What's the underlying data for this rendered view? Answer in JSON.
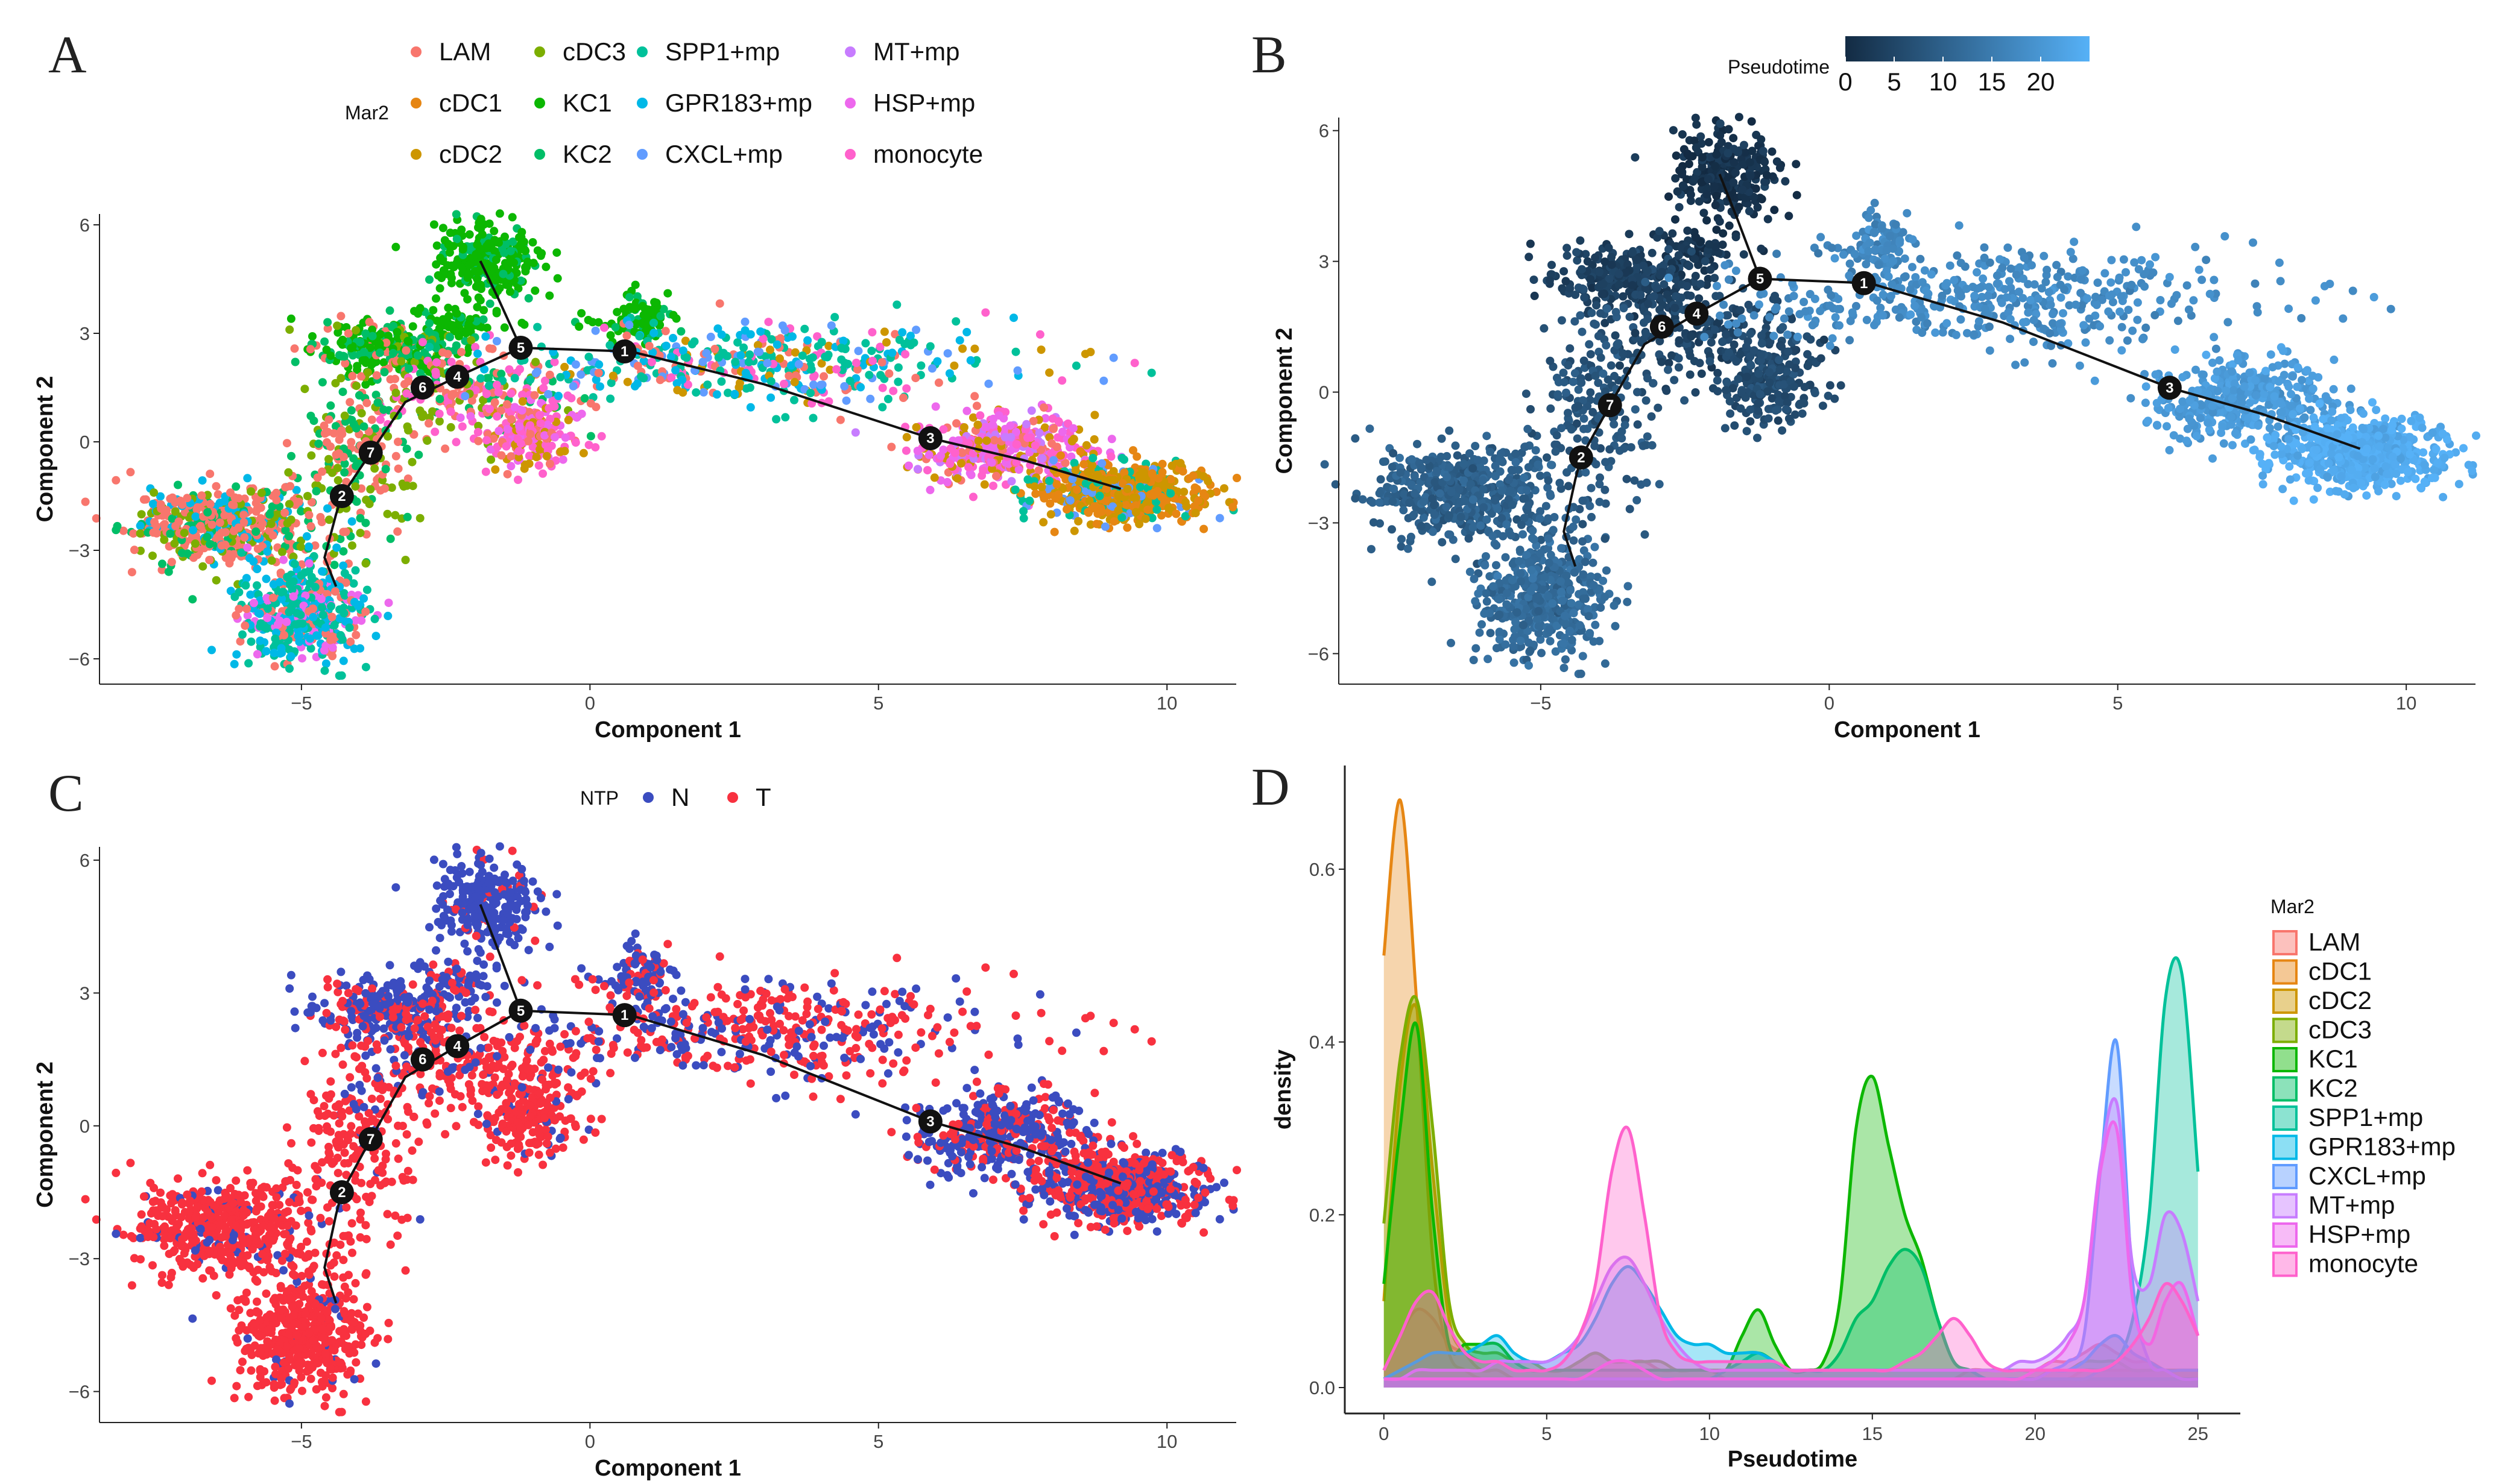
{
  "chart_data": [
    {
      "panel": "A",
      "type": "scatter",
      "xlabel": "Component 1",
      "ylabel": "Component 2",
      "xlim": [
        -8.5,
        11.2
      ],
      "ylim": [
        -6.7,
        6.3
      ],
      "xticks": [
        -5,
        0,
        5,
        10
      ],
      "yticks": [
        -6,
        -3,
        0,
        3,
        6
      ],
      "xtick_labels": [
        "−5",
        "0",
        "5",
        "10"
      ],
      "ytick_labels": [
        "−6",
        "−3",
        "0",
        "3",
        "6"
      ],
      "legend_title": "Mar2",
      "legend_position": "top",
      "color_by": "Mar2",
      "categories": [
        "LAM",
        "cDC1",
        "cDC2",
        "cDC3",
        "KC1",
        "KC2",
        "SPP1+mp",
        "GPR183+mp",
        "CXCL+mp",
        "MT+mp",
        "HSP+mp",
        "monocyte"
      ],
      "colors": [
        "#F8766D",
        "#E68613",
        "#CD9600",
        "#7CAE00",
        "#0CB702",
        "#00BE67",
        "#00C19A",
        "#00B8E7",
        "#619CFF",
        "#C77CFF",
        "#ED68ED",
        "#FF61CC"
      ]
    },
    {
      "panel": "B",
      "type": "scatter",
      "xlabel": "Component 1",
      "ylabel": "Component 2",
      "xlim": [
        -8.5,
        11.2
      ],
      "ylim": [
        -6.7,
        6.3
      ],
      "xticks": [
        -5,
        0,
        5,
        10
      ],
      "yticks": [
        -6,
        -3,
        0,
        3,
        6
      ],
      "xtick_labels": [
        "−5",
        "0",
        "5",
        "10"
      ],
      "ytick_labels": [
        "−6",
        "−3",
        "0",
        "3",
        "6"
      ],
      "legend_title": "Pseudotime",
      "legend_position": "top",
      "color_by": "Pseudotime",
      "colorbar_range": [
        0,
        25
      ],
      "colorbar_ticks": [
        "0",
        "5",
        "10",
        "15",
        "20"
      ],
      "colorbar_tick_values": [
        0,
        5,
        10,
        15,
        20
      ],
      "colorbar_low": "#132B43",
      "colorbar_high": "#56B1F7"
    },
    {
      "panel": "C",
      "type": "scatter",
      "xlabel": "Component 1",
      "ylabel": "Component 2",
      "xlim": [
        -8.5,
        11.2
      ],
      "ylim": [
        -6.7,
        6.3
      ],
      "xticks": [
        -5,
        0,
        5,
        10
      ],
      "yticks": [
        -6,
        -3,
        0,
        3,
        6
      ],
      "xtick_labels": [
        "−5",
        "0",
        "5",
        "10"
      ],
      "ytick_labels": [
        "−6",
        "−3",
        "0",
        "3",
        "6"
      ],
      "legend_title": "NTP",
      "legend_position": "top",
      "color_by": "NTP",
      "categories": [
        "N",
        "T"
      ],
      "colors": [
        "#3B4CC0",
        "#F8313F"
      ]
    },
    {
      "panel": "D",
      "type": "area",
      "xlabel": "Pseudotime",
      "ylabel": "density",
      "xlim": [
        -1.2,
        26.3
      ],
      "ylim": [
        -0.03,
        0.72
      ],
      "xticks": [
        0,
        5,
        10,
        15,
        20,
        25
      ],
      "yticks": [
        0.0,
        0.2,
        0.4,
        0.6
      ],
      "xtick_labels": [
        "0",
        "5",
        "10",
        "15",
        "20",
        "25"
      ],
      "ytick_labels": [
        "0.0",
        "0.2",
        "0.4",
        "0.6"
      ],
      "legend_title": "Mar2",
      "legend_position": "right",
      "x": [
        0,
        0.5,
        1,
        1.5,
        2,
        2.5,
        3,
        3.5,
        4,
        4.5,
        5,
        5.5,
        6,
        6.5,
        7,
        7.5,
        8,
        8.5,
        9,
        9.5,
        10,
        10.5,
        11,
        11.5,
        12,
        12.5,
        13,
        13.5,
        14,
        14.5,
        15,
        15.5,
        16,
        16.5,
        17,
        17.5,
        18,
        18.5,
        19,
        19.5,
        20,
        20.5,
        21,
        21.5,
        22,
        22.5,
        23,
        23.5,
        24,
        24.5,
        25
      ],
      "series": [
        {
          "name": "LAM",
          "color": "#F8766D",
          "values": [
            0.02,
            0.06,
            0.09,
            0.08,
            0.05,
            0.04,
            0.03,
            0.03,
            0.03,
            0.03,
            0.02,
            0.02,
            0.03,
            0.04,
            0.03,
            0.03,
            0.03,
            0.02,
            0.02,
            0.02,
            0.02,
            0.01,
            0.01,
            0.01,
            0.01,
            0.01,
            0.01,
            0.01,
            0.01,
            0.01,
            0.01,
            0.01,
            0.01,
            0.01,
            0.01,
            0.01,
            0.02,
            0.02,
            0.02,
            0.02,
            0.02,
            0.03,
            0.03,
            0.04,
            0.05,
            0.04,
            0.03,
            0.03,
            0.02,
            0.02,
            0.02
          ]
        },
        {
          "name": "cDC1",
          "color": "#E68613",
          "values": [
            0.5,
            0.68,
            0.45,
            0.15,
            0.04,
            0.02,
            0.01,
            0.01,
            0.01,
            0.01,
            0.01,
            0.01,
            0.01,
            0.01,
            0.01,
            0.01,
            0.01,
            0.01,
            0.01,
            0.01,
            0.01,
            0.01,
            0.01,
            0.01,
            0.01,
            0.01,
            0.01,
            0.01,
            0.01,
            0.01,
            0.01,
            0.01,
            0.01,
            0.01,
            0.01,
            0.01,
            0.01,
            0.01,
            0.01,
            0.01,
            0.01,
            0.01,
            0.01,
            0.02,
            0.02,
            0.02,
            0.02,
            0.02,
            0.02,
            0.02,
            0.02
          ]
        },
        {
          "name": "cDC2",
          "color": "#CD9600",
          "values": [
            0.1,
            0.35,
            0.44,
            0.25,
            0.08,
            0.04,
            0.02,
            0.02,
            0.01,
            0.01,
            0.01,
            0.01,
            0.01,
            0.01,
            0.01,
            0.01,
            0.01,
            0.01,
            0.01,
            0.01,
            0.01,
            0.01,
            0.01,
            0.01,
            0.01,
            0.01,
            0.01,
            0.01,
            0.01,
            0.01,
            0.01,
            0.01,
            0.01,
            0.01,
            0.01,
            0.01,
            0.01,
            0.01,
            0.01,
            0.01,
            0.01,
            0.02,
            0.02,
            0.03,
            0.05,
            0.06,
            0.04,
            0.03,
            0.02,
            0.02,
            0.02
          ]
        },
        {
          "name": "cDC3",
          "color": "#7CAE00",
          "values": [
            0.19,
            0.38,
            0.45,
            0.3,
            0.1,
            0.05,
            0.04,
            0.04,
            0.03,
            0.03,
            0.02,
            0.02,
            0.03,
            0.04,
            0.03,
            0.03,
            0.03,
            0.03,
            0.02,
            0.02,
            0.02,
            0.02,
            0.02,
            0.02,
            0.02,
            0.02,
            0.02,
            0.02,
            0.02,
            0.02,
            0.02,
            0.02,
            0.02,
            0.02,
            0.02,
            0.02,
            0.02,
            0.02,
            0.02,
            0.02,
            0.02,
            0.02,
            0.02,
            0.03,
            0.03,
            0.03,
            0.02,
            0.02,
            0.02,
            0.02,
            0.02
          ]
        },
        {
          "name": "KC1",
          "color": "#0CB702",
          "values": [
            0.12,
            0.3,
            0.42,
            0.2,
            0.05,
            0.05,
            0.05,
            0.05,
            0.03,
            0.02,
            0.02,
            0.02,
            0.02,
            0.02,
            0.02,
            0.02,
            0.02,
            0.02,
            0.02,
            0.02,
            0.02,
            0.02,
            0.06,
            0.09,
            0.05,
            0.02,
            0.02,
            0.03,
            0.1,
            0.3,
            0.36,
            0.28,
            0.2,
            0.15,
            0.08,
            0.03,
            0.02,
            0.01,
            0.01,
            0.01,
            0.01,
            0.01,
            0.01,
            0.01,
            0.01,
            0.01,
            0.01,
            0.01,
            0.01,
            0.01,
            0.01
          ]
        },
        {
          "name": "KC2",
          "color": "#00BE67",
          "values": [
            0.01,
            0.01,
            0.01,
            0.01,
            0.01,
            0.01,
            0.01,
            0.01,
            0.01,
            0.01,
            0.01,
            0.01,
            0.01,
            0.01,
            0.01,
            0.01,
            0.01,
            0.01,
            0.01,
            0.01,
            0.01,
            0.02,
            0.03,
            0.04,
            0.03,
            0.02,
            0.02,
            0.02,
            0.04,
            0.08,
            0.1,
            0.14,
            0.16,
            0.14,
            0.08,
            0.03,
            0.02,
            0.01,
            0.01,
            0.01,
            0.01,
            0.01,
            0.01,
            0.01,
            0.01,
            0.01,
            0.01,
            0.01,
            0.01,
            0.01,
            0.01
          ]
        },
        {
          "name": "SPP1+mp",
          "color": "#00C19A",
          "values": [
            0.01,
            0.01,
            0.01,
            0.01,
            0.01,
            0.01,
            0.01,
            0.01,
            0.01,
            0.01,
            0.01,
            0.01,
            0.01,
            0.01,
            0.01,
            0.01,
            0.01,
            0.01,
            0.01,
            0.01,
            0.01,
            0.01,
            0.01,
            0.01,
            0.01,
            0.01,
            0.01,
            0.01,
            0.01,
            0.01,
            0.01,
            0.01,
            0.01,
            0.01,
            0.01,
            0.01,
            0.01,
            0.01,
            0.01,
            0.01,
            0.01,
            0.01,
            0.01,
            0.01,
            0.02,
            0.03,
            0.08,
            0.2,
            0.45,
            0.48,
            0.25
          ]
        },
        {
          "name": "GPR183+mp",
          "color": "#00B8E7",
          "values": [
            0.01,
            0.02,
            0.03,
            0.04,
            0.04,
            0.04,
            0.05,
            0.06,
            0.04,
            0.03,
            0.03,
            0.04,
            0.05,
            0.08,
            0.12,
            0.14,
            0.12,
            0.09,
            0.06,
            0.05,
            0.05,
            0.04,
            0.04,
            0.04,
            0.03,
            0.02,
            0.02,
            0.02,
            0.02,
            0.02,
            0.02,
            0.02,
            0.02,
            0.02,
            0.02,
            0.02,
            0.02,
            0.02,
            0.02,
            0.02,
            0.02,
            0.02,
            0.02,
            0.03,
            0.05,
            0.06,
            0.04,
            0.03,
            0.02,
            0.02,
            0.02
          ]
        },
        {
          "name": "CXCL+mp",
          "color": "#619CFF",
          "values": [
            0.01,
            0.01,
            0.01,
            0.01,
            0.01,
            0.01,
            0.01,
            0.01,
            0.01,
            0.01,
            0.01,
            0.01,
            0.01,
            0.01,
            0.01,
            0.01,
            0.01,
            0.01,
            0.01,
            0.01,
            0.01,
            0.01,
            0.01,
            0.01,
            0.01,
            0.01,
            0.01,
            0.01,
            0.01,
            0.01,
            0.01,
            0.01,
            0.01,
            0.01,
            0.01,
            0.01,
            0.01,
            0.01,
            0.01,
            0.01,
            0.01,
            0.02,
            0.03,
            0.06,
            0.25,
            0.4,
            0.12,
            0.03,
            0.02,
            0.01,
            0.01
          ]
        },
        {
          "name": "MT+mp",
          "color": "#C77CFF",
          "values": [
            0.01,
            0.01,
            0.02,
            0.02,
            0.02,
            0.02,
            0.02,
            0.03,
            0.03,
            0.03,
            0.03,
            0.04,
            0.06,
            0.1,
            0.14,
            0.15,
            0.12,
            0.08,
            0.05,
            0.03,
            0.02,
            0.02,
            0.02,
            0.02,
            0.02,
            0.02,
            0.02,
            0.02,
            0.02,
            0.02,
            0.02,
            0.02,
            0.02,
            0.02,
            0.02,
            0.02,
            0.02,
            0.02,
            0.02,
            0.03,
            0.03,
            0.04,
            0.06,
            0.1,
            0.26,
            0.33,
            0.14,
            0.12,
            0.2,
            0.18,
            0.1
          ]
        },
        {
          "name": "HSP+mp",
          "color": "#ED68ED",
          "values": [
            0.01,
            0.01,
            0.01,
            0.01,
            0.01,
            0.01,
            0.01,
            0.01,
            0.01,
            0.01,
            0.01,
            0.01,
            0.01,
            0.02,
            0.03,
            0.03,
            0.02,
            0.01,
            0.01,
            0.01,
            0.01,
            0.01,
            0.01,
            0.01,
            0.01,
            0.01,
            0.01,
            0.01,
            0.01,
            0.01,
            0.01,
            0.01,
            0.01,
            0.01,
            0.01,
            0.01,
            0.01,
            0.01,
            0.01,
            0.01,
            0.02,
            0.03,
            0.05,
            0.1,
            0.25,
            0.3,
            0.1,
            0.05,
            0.1,
            0.12,
            0.06
          ]
        },
        {
          "name": "monocyte",
          "color": "#FF61CC",
          "values": [
            0.02,
            0.06,
            0.1,
            0.11,
            0.07,
            0.04,
            0.03,
            0.03,
            0.02,
            0.02,
            0.02,
            0.03,
            0.06,
            0.12,
            0.25,
            0.3,
            0.2,
            0.08,
            0.04,
            0.03,
            0.03,
            0.03,
            0.03,
            0.03,
            0.03,
            0.02,
            0.02,
            0.02,
            0.02,
            0.02,
            0.02,
            0.02,
            0.03,
            0.04,
            0.06,
            0.08,
            0.06,
            0.03,
            0.02,
            0.02,
            0.02,
            0.02,
            0.02,
            0.02,
            0.02,
            0.03,
            0.05,
            0.08,
            0.12,
            0.1,
            0.06
          ]
        }
      ]
    }
  ],
  "trajectory_nodes": [
    "1",
    "2",
    "3",
    "4",
    "5",
    "6",
    "7"
  ],
  "panel_letters": [
    "A",
    "B",
    "C",
    "D"
  ]
}
